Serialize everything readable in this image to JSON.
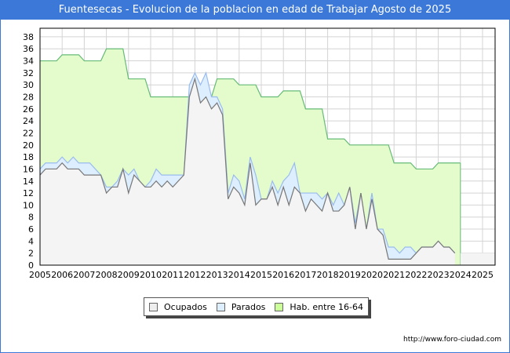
{
  "title": "Fuentesecas - Evolucion de la poblacion en edad de Trabajar Agosto de 2025",
  "footer": "http://www.foro-ciudad.com",
  "chart_data": {
    "type": "area",
    "title": "Fuentesecas - Evolucion de la poblacion en edad de Trabajar Agosto de 2025",
    "xlabel": "",
    "ylabel": "",
    "ylim": [
      0,
      38
    ],
    "xlim": [
      2005,
      2025.6
    ],
    "yticks": [
      "0",
      "2",
      "4",
      "6",
      "8",
      "10",
      "12",
      "14",
      "16",
      "18",
      "20",
      "22",
      "24",
      "26",
      "28",
      "30",
      "32",
      "34",
      "36",
      "38"
    ],
    "xticks": [
      "2005",
      "2006",
      "2007",
      "2008",
      "2009",
      "2010",
      "2011",
      "2012",
      "2013",
      "2014",
      "2015",
      "2016",
      "2017",
      "2018",
      "2019",
      "2020",
      "2021",
      "2022",
      "2023",
      "2024",
      "2025"
    ],
    "grid": true,
    "legend_position": "bottom",
    "x_start": 2005,
    "x_step": 0.25,
    "series": [
      {
        "name": "Ocupados",
        "color": "#f4f4f4",
        "line": "#777777",
        "values": [
          15,
          16,
          16,
          16,
          17,
          16,
          16,
          16,
          15,
          15,
          15,
          15,
          12,
          13,
          13,
          16,
          12,
          15,
          14,
          13,
          13,
          14,
          13,
          14,
          13,
          14,
          15,
          28,
          31,
          27,
          28,
          26,
          27,
          25,
          11,
          13,
          12,
          10,
          17,
          10,
          11,
          11,
          13,
          10,
          13,
          10,
          13,
          12,
          9,
          11,
          10,
          9,
          12,
          9,
          9,
          10,
          13,
          6,
          12,
          6,
          11,
          6,
          5,
          1,
          1,
          1,
          1,
          1,
          2,
          3,
          3,
          3,
          4,
          3,
          3,
          2
        ]
      },
      {
        "name": "Parados",
        "color": "#ddeeff",
        "line": "#99bbee",
        "values": [
          1,
          1,
          1,
          1,
          1,
          1,
          2,
          1,
          2,
          2,
          1,
          0,
          1,
          0,
          1,
          0,
          3,
          1,
          0,
          0,
          1,
          2,
          2,
          1,
          2,
          1,
          0,
          2,
          1,
          3,
          4,
          2,
          1,
          1,
          1,
          2,
          2,
          1,
          1,
          5,
          0,
          0,
          1,
          2,
          1,
          5,
          4,
          0,
          3,
          1,
          2,
          2,
          0,
          1,
          3,
          0,
          0,
          1,
          0,
          0,
          1,
          0,
          1,
          2,
          2,
          1,
          2,
          2,
          0,
          0,
          0,
          0,
          0,
          0,
          0,
          0
        ]
      },
      {
        "name": "Hab. entre 16-64",
        "color": "#e4fccc",
        "line": "#66bb77",
        "values": [
          34,
          34,
          34,
          34,
          35,
          35,
          35,
          35,
          34,
          34,
          34,
          34,
          36,
          36,
          36,
          36,
          31,
          31,
          31,
          31,
          28,
          28,
          28,
          28,
          28,
          28,
          28,
          28,
          28,
          28,
          28,
          28,
          31,
          31,
          31,
          31,
          30,
          30,
          30,
          30,
          28,
          28,
          28,
          28,
          29,
          29,
          29,
          29,
          26,
          26,
          26,
          26,
          21,
          21,
          21,
          21,
          20,
          20,
          20,
          20,
          20,
          20,
          20,
          20,
          17,
          17,
          17,
          17,
          16,
          16,
          16,
          16,
          17,
          17,
          17,
          17,
          17
        ]
      }
    ]
  }
}
